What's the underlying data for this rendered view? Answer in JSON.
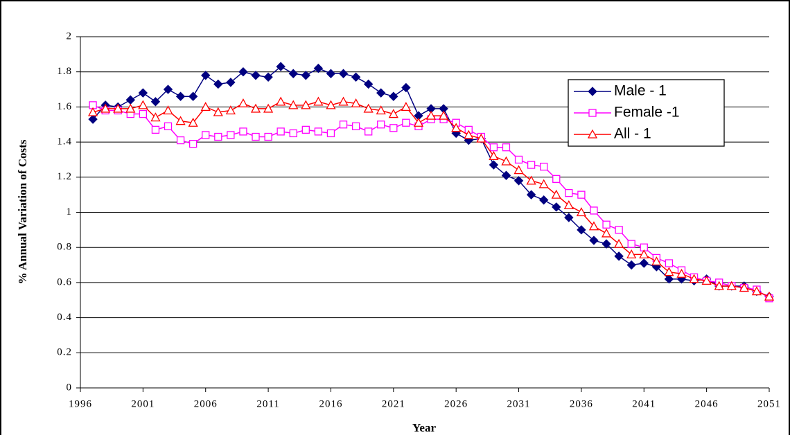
{
  "chart_data": {
    "type": "line",
    "x_label": "Year",
    "y_label": "% Annual Variation of Costs",
    "x": [
      1997,
      1998,
      1999,
      2000,
      2001,
      2002,
      2003,
      2004,
      2005,
      2006,
      2007,
      2008,
      2009,
      2010,
      2011,
      2012,
      2013,
      2014,
      2015,
      2016,
      2017,
      2018,
      2019,
      2020,
      2021,
      2022,
      2023,
      2024,
      2025,
      2026,
      2027,
      2028,
      2029,
      2030,
      2031,
      2032,
      2033,
      2034,
      2035,
      2036,
      2037,
      2038,
      2039,
      2040,
      2041,
      2042,
      2043,
      2044,
      2045,
      2046,
      2047,
      2048,
      2049,
      2050,
      2051
    ],
    "series": [
      {
        "name": "Male - 1",
        "color": "#000080",
        "marker": "diamond",
        "values": [
          1.53,
          1.61,
          1.6,
          1.64,
          1.68,
          1.63,
          1.7,
          1.66,
          1.66,
          1.78,
          1.73,
          1.74,
          1.8,
          1.78,
          1.77,
          1.83,
          1.79,
          1.78,
          1.82,
          1.79,
          1.79,
          1.77,
          1.73,
          1.68,
          1.66,
          1.71,
          1.55,
          1.59,
          1.59,
          1.45,
          1.41,
          1.42,
          1.27,
          1.21,
          1.18,
          1.1,
          1.07,
          1.03,
          0.97,
          0.9,
          0.84,
          0.82,
          0.75,
          0.7,
          0.71,
          0.69,
          0.62,
          0.62,
          0.61,
          0.62,
          0.58,
          0.58,
          0.58,
          0.55,
          0.52
        ]
      },
      {
        "name": "Female -1",
        "color": "#ff00ff",
        "marker": "square",
        "values": [
          1.61,
          1.58,
          1.58,
          1.56,
          1.56,
          1.47,
          1.49,
          1.41,
          1.39,
          1.44,
          1.43,
          1.44,
          1.46,
          1.43,
          1.43,
          1.46,
          1.45,
          1.47,
          1.46,
          1.45,
          1.5,
          1.49,
          1.46,
          1.5,
          1.48,
          1.51,
          1.49,
          1.53,
          1.53,
          1.51,
          1.47,
          1.43,
          1.37,
          1.37,
          1.3,
          1.27,
          1.26,
          1.19,
          1.11,
          1.1,
          1.01,
          0.93,
          0.9,
          0.82,
          0.8,
          0.74,
          0.71,
          0.67,
          0.63,
          0.61,
          0.6,
          0.58,
          0.57,
          0.56,
          0.51
        ]
      },
      {
        "name": "All - 1",
        "color": "#ff0000",
        "marker": "triangle",
        "values": [
          1.57,
          1.59,
          1.59,
          1.59,
          1.61,
          1.54,
          1.58,
          1.52,
          1.51,
          1.6,
          1.57,
          1.58,
          1.62,
          1.59,
          1.59,
          1.63,
          1.61,
          1.61,
          1.63,
          1.61,
          1.63,
          1.62,
          1.59,
          1.58,
          1.56,
          1.6,
          1.51,
          1.55,
          1.55,
          1.48,
          1.44,
          1.42,
          1.32,
          1.29,
          1.24,
          1.18,
          1.16,
          1.1,
          1.04,
          1.0,
          0.92,
          0.88,
          0.82,
          0.76,
          0.76,
          0.72,
          0.66,
          0.65,
          0.62,
          0.61,
          0.58,
          0.58,
          0.57,
          0.55,
          0.52
        ]
      }
    ],
    "xlim": [
      1996,
      2051
    ],
    "xticks": [
      1996,
      2001,
      2006,
      2011,
      2016,
      2021,
      2026,
      2031,
      2036,
      2041,
      2046,
      2051
    ],
    "ylim": [
      0,
      2
    ],
    "yticks": [
      0,
      0.2,
      0.4,
      0.6,
      0.8,
      1,
      1.2,
      1.4,
      1.6,
      1.8,
      2
    ],
    "grid": true,
    "legend": "upper right"
  }
}
